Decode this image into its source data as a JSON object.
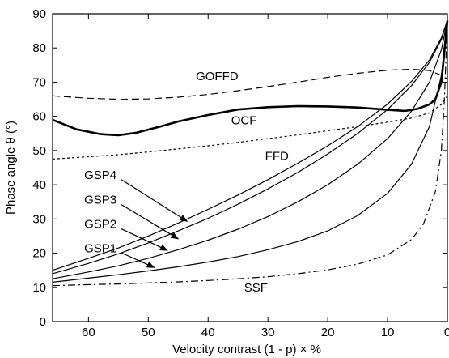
{
  "chart_data": {
    "type": "line",
    "xlabel": "Velocity contrast (1 - p) × %",
    "ylabel": "Phase angle θ (°)",
    "xlim": [
      66,
      0
    ],
    "ylim": [
      0,
      90
    ],
    "x_axis_reversed": true,
    "xticks": [
      60,
      50,
      40,
      30,
      20,
      10,
      0
    ],
    "yticks": [
      0,
      10,
      20,
      30,
      40,
      50,
      60,
      70,
      80,
      90
    ],
    "grid": false,
    "series": [
      {
        "name": "GOFFD",
        "style": "dashed",
        "x": [
          66,
          60,
          55,
          50,
          45,
          40,
          35,
          30,
          25,
          20,
          15,
          10,
          6,
          3,
          1,
          0
        ],
        "y": [
          66,
          65.3,
          65,
          65.1,
          65.6,
          66.4,
          67.5,
          68.7,
          70,
          71.4,
          72.6,
          73.5,
          73.8,
          73.4,
          72,
          71
        ]
      },
      {
        "name": "OCF",
        "style": "bold",
        "x": [
          66,
          62,
          58,
          55,
          52,
          48,
          45,
          40,
          35,
          30,
          25,
          20,
          15,
          10,
          7,
          5,
          3,
          2,
          1,
          0
        ],
        "y": [
          59,
          56.2,
          54.8,
          54.5,
          55.2,
          57,
          58.5,
          60.4,
          62,
          62.7,
          63,
          62.9,
          62.6,
          61.9,
          61.6,
          62.2,
          63.5,
          65,
          70,
          88
        ]
      },
      {
        "name": "FFD",
        "style": "dotted",
        "x": [
          66,
          60,
          55,
          50,
          45,
          40,
          35,
          30,
          25,
          20,
          15,
          10,
          6,
          3,
          1,
          0
        ],
        "y": [
          47.5,
          48.2,
          48.8,
          49.6,
          50.5,
          51.4,
          52.4,
          53.5,
          54.6,
          55.8,
          57,
          58.3,
          59.5,
          61,
          63.5,
          66
        ]
      },
      {
        "name": "GSP4",
        "style": "solid",
        "x": [
          66,
          60,
          55,
          50,
          45,
          40,
          35,
          30,
          25,
          20,
          15,
          10,
          6,
          3,
          1,
          0
        ],
        "y": [
          15,
          18.5,
          21.5,
          25,
          28.8,
          32.8,
          37,
          41.5,
          46.3,
          51.4,
          57,
          63.6,
          70.2,
          76.5,
          83,
          88
        ]
      },
      {
        "name": "GSP3",
        "style": "solid",
        "x": [
          66,
          60,
          55,
          50,
          45,
          40,
          35,
          30,
          25,
          20,
          15,
          10,
          6,
          3,
          1,
          0
        ],
        "y": [
          14,
          17,
          19.8,
          23,
          26.5,
          30.2,
          34.3,
          38.8,
          43.6,
          49,
          55,
          62,
          69,
          75.8,
          82.5,
          88
        ]
      },
      {
        "name": "GSP2",
        "style": "solid",
        "x": [
          66,
          60,
          55,
          50,
          45,
          40,
          35,
          30,
          25,
          20,
          15,
          10,
          6,
          3,
          1,
          0
        ],
        "y": [
          12.5,
          14.5,
          16.3,
          18.5,
          21,
          23.8,
          27,
          30.7,
          35,
          40,
          46,
          53.5,
          61.5,
          70,
          79.5,
          88
        ]
      },
      {
        "name": "GSP1",
        "style": "solid",
        "x": [
          66,
          60,
          55,
          50,
          45,
          40,
          35,
          30,
          25,
          20,
          15,
          10,
          6,
          3,
          1,
          0
        ],
        "y": [
          11.5,
          12.7,
          13.7,
          14.8,
          16,
          17.4,
          19,
          21,
          23.4,
          26.5,
          31,
          37.5,
          46,
          57,
          72,
          88
        ]
      },
      {
        "name": "SSF",
        "style": "dashdot",
        "x": [
          66,
          60,
          55,
          50,
          45,
          40,
          35,
          30,
          25,
          20,
          15,
          10,
          6,
          4,
          2,
          1,
          0.5,
          0
        ],
        "y": [
          10.5,
          10.8,
          11,
          11.3,
          11.6,
          12,
          12.5,
          13.1,
          14,
          15.1,
          16.8,
          19.5,
          24,
          28.5,
          38,
          50,
          65,
          88
        ]
      }
    ],
    "annotations": [
      {
        "text": "GOFFD",
        "x": 38.5,
        "y": 70.6
      },
      {
        "text": "OCF",
        "x": 34,
        "y": 57.7
      },
      {
        "text": "FFD",
        "x": 28.5,
        "y": 47.3
      },
      {
        "text": "GSP4",
        "x": 58,
        "y": 41.7
      },
      {
        "text": "GSP3",
        "x": 58,
        "y": 34.5
      },
      {
        "text": "GSP2",
        "x": 58,
        "y": 27.3
      },
      {
        "text": "GSP1",
        "x": 58,
        "y": 20.2
      },
      {
        "text": "SSF",
        "x": 32,
        "y": 8.8
      }
    ],
    "arrows": [
      {
        "label": "GSP4",
        "from": [
          54.5,
          41.5
        ],
        "to": [
          43.5,
          29.3
        ]
      },
      {
        "label": "GSP3",
        "from": [
          54.5,
          34.2
        ],
        "to": [
          45,
          24.2
        ]
      },
      {
        "label": "GSP2",
        "from": [
          54.5,
          27.1
        ],
        "to": [
          46.8,
          20.8
        ]
      },
      {
        "label": "GSP1",
        "from": [
          54.5,
          20.1
        ],
        "to": [
          49,
          15.8
        ]
      }
    ]
  }
}
